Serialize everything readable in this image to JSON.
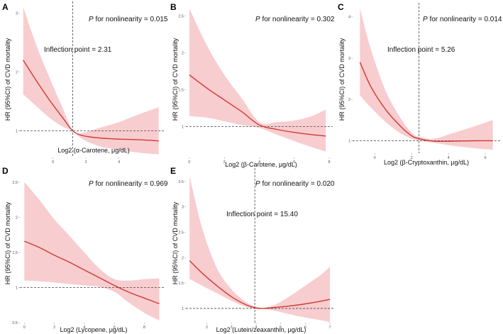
{
  "colors": {
    "line": "#d03a2f",
    "band": "#f7c4c8",
    "guide": "#444444"
  },
  "chart_data": [
    {
      "panel": "A",
      "type": "line",
      "xlabel": "Log2 (α-Carotene, μg/dL)",
      "ylabel": "HR (95%CI) of CVD mortality",
      "p_italic": "P",
      "p_text": " for nonlinearity = 0.015",
      "inflection_label": "Inflection point = 2.31",
      "xlim": [
        -2,
        6.8
      ],
      "ylim": [
        0.55,
        3.1
      ],
      "xticks": [
        0,
        2,
        4
      ],
      "yticks": [
        1,
        2,
        3
      ],
      "ref_hr": 1.0,
      "inflection_x": 1.2,
      "x": [
        -1.8,
        -1.0,
        -0.2,
        0.6,
        1.2,
        1.8,
        2.8,
        4.0,
        5.2,
        6.4
      ],
      "hr": [
        2.2,
        1.85,
        1.52,
        1.22,
        1.0,
        0.92,
        0.88,
        0.86,
        0.85,
        0.83
      ],
      "lower": [
        1.62,
        1.42,
        1.22,
        1.07,
        1.0,
        0.86,
        0.74,
        0.68,
        0.63,
        0.6
      ],
      "upper": [
        3.1,
        2.45,
        1.9,
        1.38,
        1.0,
        0.97,
        1.05,
        1.15,
        1.28,
        1.4
      ]
    },
    {
      "panel": "B",
      "type": "line",
      "xlabel": "Log2 (β-Carotene, μg/dL)",
      "ylabel": "HR (95%CI) of CVD mortality",
      "p_italic": "P",
      "p_text": " for nonlinearity = 0.302",
      "inflection_label": "",
      "xlim": [
        -0.2,
        8.2
      ],
      "ylim": [
        0.58,
        2.62
      ],
      "xticks": [
        0,
        2,
        4,
        6,
        8
      ],
      "yticks": [
        1.0,
        1.5,
        2.0,
        2.5
      ],
      "ref_hr": 1.0,
      "inflection_x": null,
      "x": [
        0.0,
        1.0,
        2.0,
        3.0,
        4.0,
        5.0,
        6.0,
        7.0,
        7.8
      ],
      "hr": [
        1.7,
        1.52,
        1.36,
        1.2,
        1.02,
        0.96,
        0.92,
        0.89,
        0.87
      ],
      "lower": [
        1.14,
        1.12,
        1.07,
        1.02,
        0.98,
        0.89,
        0.8,
        0.72,
        0.66
      ],
      "upper": [
        2.6,
        2.1,
        1.7,
        1.38,
        1.06,
        1.06,
        1.08,
        1.14,
        1.23
      ]
    },
    {
      "panel": "C",
      "type": "line",
      "xlabel": "Log2 (β-Cryptoxanthin, μg/dL)",
      "ylabel": "HR (95%CI) of CVD mortality",
      "p_italic": "P",
      "p_text": " for nonlinearity = 0.014",
      "inflection_label": "Inflection point = 5.26",
      "xlim": [
        -1.2,
        6.8
      ],
      "ylim": [
        0.7,
        4.2
      ],
      "xticks": [
        0,
        2,
        4,
        6
      ],
      "yticks": [
        1,
        2,
        3,
        4
      ],
      "ref_hr": 1.0,
      "inflection_x": 2.4,
      "x": [
        -0.8,
        -0.2,
        0.6,
        1.4,
        2.0,
        2.4,
        3.2,
        4.2,
        5.4,
        6.4
      ],
      "hr": [
        2.9,
        2.3,
        1.75,
        1.35,
        1.12,
        1.05,
        0.99,
        0.99,
        1.0,
        1.0
      ],
      "lower": [
        2.1,
        1.8,
        1.45,
        1.18,
        1.05,
        1.0,
        0.95,
        0.88,
        0.82,
        0.78
      ],
      "upper": [
        4.2,
        3.2,
        2.2,
        1.55,
        1.2,
        1.1,
        1.05,
        1.18,
        1.35,
        1.5
      ]
    },
    {
      "panel": "D",
      "type": "line",
      "xlabel": "Log2 (Lycopene, μg/dL)",
      "ylabel": "HR (95%CI) of CVD mortality",
      "p_italic": "P",
      "p_text": " for nonlinearity = 0.969",
      "inflection_label": "",
      "xlim": [
        -0.3,
        9.4
      ],
      "ylim": [
        0.5,
        2.62
      ],
      "xticks": [
        0,
        2,
        4,
        6,
        8
      ],
      "yticks": [
        0.5,
        1.0,
        1.5,
        2.0,
        2.5
      ],
      "ref_hr": 1.0,
      "inflection_x": null,
      "x": [
        0,
        1,
        2,
        3,
        4,
        5,
        6,
        7,
        8,
        9
      ],
      "hr": [
        1.66,
        1.57,
        1.46,
        1.36,
        1.25,
        1.14,
        1.03,
        0.93,
        0.85,
        0.77
      ],
      "lower": [
        1.1,
        1.09,
        1.07,
        1.05,
        1.03,
        1.01,
        0.94,
        0.78,
        0.64,
        0.53
      ],
      "upper": [
        2.5,
        2.25,
        1.97,
        1.74,
        1.5,
        1.27,
        1.12,
        1.1,
        1.12,
        1.13
      ]
    },
    {
      "panel": "E",
      "type": "line",
      "xlabel": "Log2 (Lutein/zeaxanthin, μg/dL)",
      "ylabel": "HR (95%CI) of CVD mortality",
      "p_italic": "P",
      "p_text": " for nonlinearity = 0.020",
      "inflection_label": "Inflection point = 15.40",
      "xlim": [
        1.15,
        7.2
      ],
      "ylim": [
        0.72,
        3.65
      ],
      "xticks": [
        2,
        3,
        4,
        5,
        6,
        7
      ],
      "yticks": [
        1.0,
        1.5,
        2.0,
        2.5,
        3.0,
        3.5
      ],
      "ref_hr": 1.0,
      "inflection_x": 3.95,
      "x": [
        1.3,
        1.8,
        2.4,
        3.0,
        3.6,
        4.0,
        4.3,
        4.8,
        5.4,
        6.0,
        6.6,
        7.0
      ],
      "hr": [
        1.94,
        1.7,
        1.45,
        1.23,
        1.07,
        1.01,
        1.0,
        1.02,
        1.05,
        1.09,
        1.14,
        1.18
      ],
      "lower": [
        1.58,
        1.45,
        1.3,
        1.15,
        1.03,
        0.99,
        0.99,
        0.95,
        0.88,
        0.82,
        0.77,
        0.73
      ],
      "upper": [
        3.6,
        2.6,
        1.8,
        1.38,
        1.12,
        1.03,
        1.01,
        1.08,
        1.25,
        1.45,
        1.65,
        1.82
      ]
    }
  ]
}
